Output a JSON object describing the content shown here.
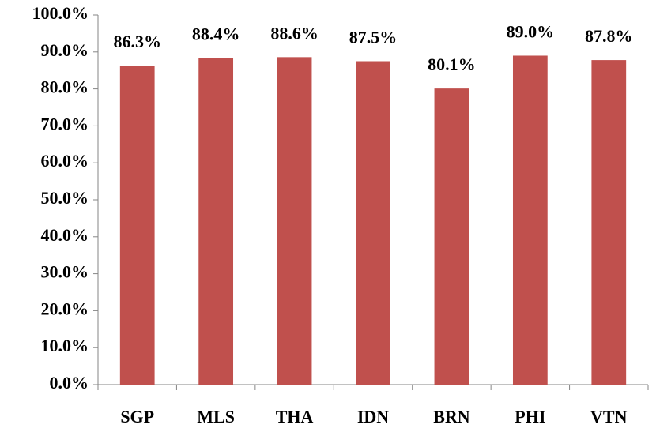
{
  "chart_data": {
    "type": "bar",
    "categories": [
      "SGP",
      "MLS",
      "THA",
      "IDN",
      "BRN",
      "PHI",
      "VTN"
    ],
    "values": [
      86.3,
      88.4,
      88.6,
      87.5,
      80.1,
      89.0,
      87.8
    ],
    "value_labels": [
      "86.3%",
      "88.4%",
      "88.6%",
      "87.5%",
      "80.1%",
      "89.0%",
      "87.8%"
    ],
    "color": "#c0504d",
    "ylim": [
      0,
      100
    ],
    "yticks": [
      {
        "value": 0,
        "label": "0.0%"
      },
      {
        "value": 10,
        "label": "10.0%"
      },
      {
        "value": 20,
        "label": "20.0%"
      },
      {
        "value": 30,
        "label": "30.0%"
      },
      {
        "value": 40,
        "label": "40.0%"
      },
      {
        "value": 50,
        "label": "50.0%"
      },
      {
        "value": 60,
        "label": "60.0%"
      },
      {
        "value": 70,
        "label": "70.0%"
      },
      {
        "value": 80,
        "label": "80.0%"
      },
      {
        "value": 90,
        "label": "90.0%"
      },
      {
        "value": 100,
        "label": "100.0%"
      }
    ],
    "grid": false
  }
}
